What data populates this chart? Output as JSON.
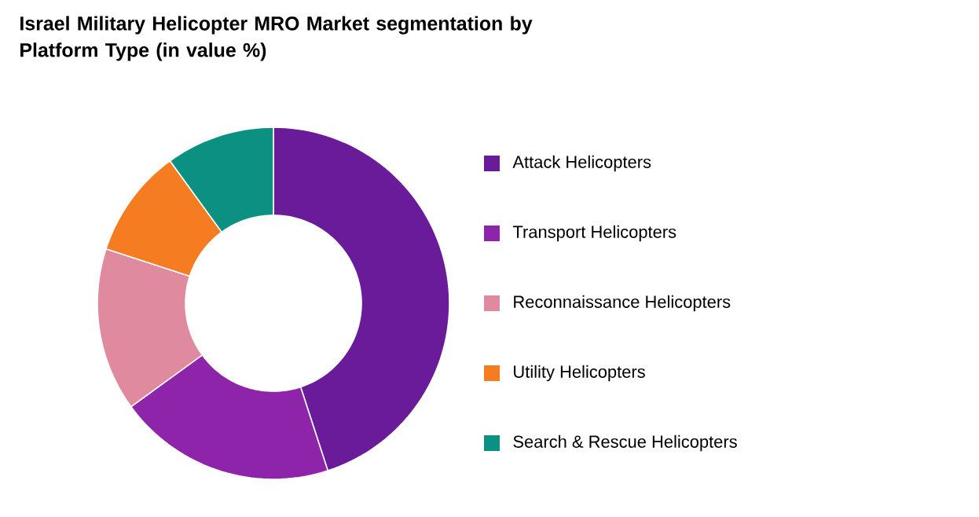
{
  "chart_data": {
    "type": "donut",
    "title": "Israel Military Helicopter MRO Market segmentation by Platform Type (in value %)",
    "categories": [
      "Attack Helicopters",
      "Transport Helicopters",
      "Reconnaissance Helicopters",
      "Utility Helicopters",
      "Search & Rescue Helicopters"
    ],
    "values": [
      45,
      20,
      15,
      10,
      10
    ],
    "colors": [
      "#6a1b9a",
      "#8e24aa",
      "#e08aa0",
      "#f57c20",
      "#0b9082"
    ],
    "legend": "right"
  }
}
